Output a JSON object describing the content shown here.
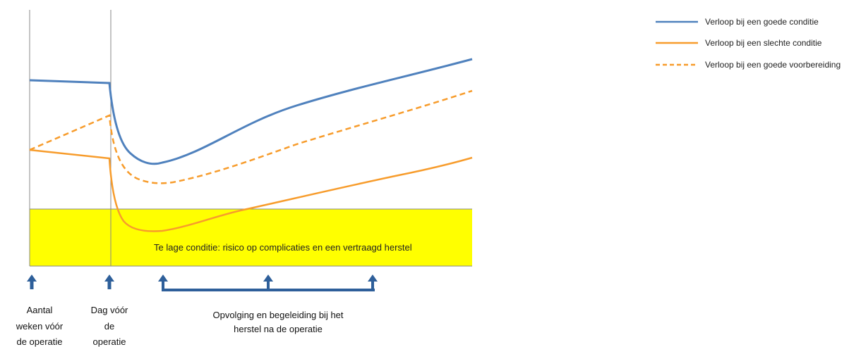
{
  "colors": {
    "good": "#4f81bd",
    "poor": "#f79c2c",
    "zone": "#ffff00",
    "arrow": "#2e5f9a",
    "axis": "#888888"
  },
  "legend": {
    "good_condition": "Verloop bij een goede conditie",
    "poor_condition": "Verloop bij een slechte conditie",
    "good_preparation": "Verloop bij een goede voorbereiding"
  },
  "zone": {
    "label": "Te lage conditie: risico op complicaties en een vertraagd herstel"
  },
  "captions": {
    "weeks_before": [
      "Aantal",
      "weken vóór",
      "de operatie"
    ],
    "day_before": [
      "Dag vóór",
      "de",
      "operatie"
    ],
    "follow_up": [
      "Opvolging en begeleiding bij het",
      "herstel na de operatie"
    ]
  },
  "icons": {
    "marker": "up-arrow-icon",
    "bracket": "follow-up-bracket-icon"
  }
}
